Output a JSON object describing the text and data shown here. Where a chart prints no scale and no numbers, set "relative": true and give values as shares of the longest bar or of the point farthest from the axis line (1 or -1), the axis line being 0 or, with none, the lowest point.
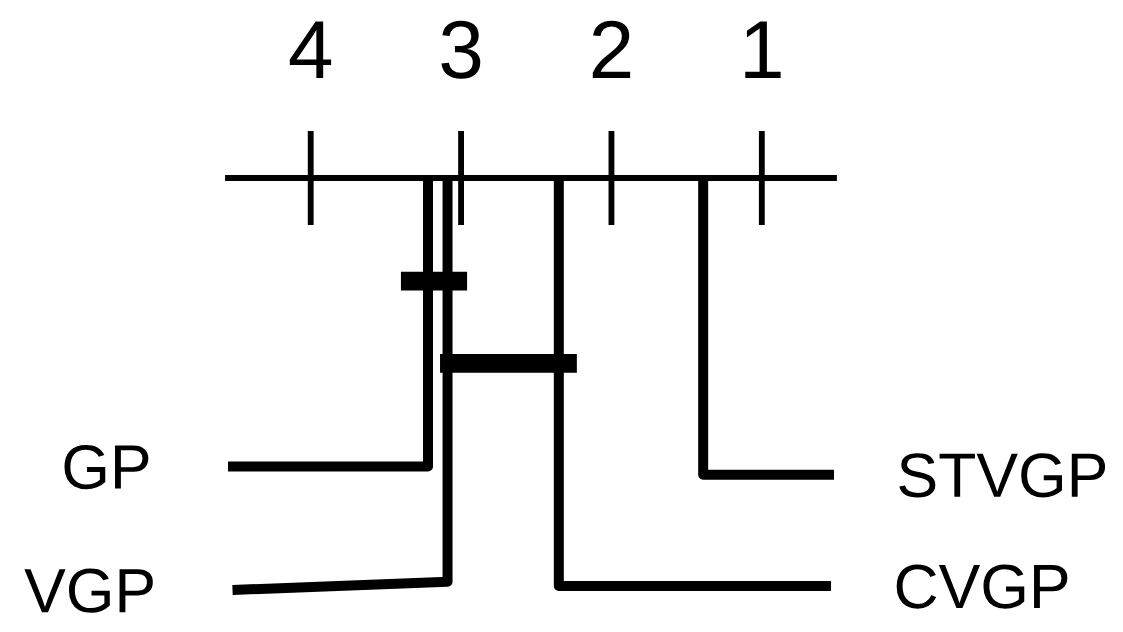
{
  "chart_data": {
    "type": "line",
    "relative": true,
    "xlim": [
      4.55,
      0.52
    ],
    "xticks": [
      4,
      3,
      2,
      1
    ],
    "series": [
      {
        "name": "GP",
        "color": "#000000",
        "x": [
          3.22,
          3.22,
          4.55
        ],
        "values": [
          0,
          -0.7,
          -0.7
        ]
      },
      {
        "name": "STVGP",
        "color": "#000000",
        "x": [
          1.39,
          1.39,
          0.52
        ],
        "values": [
          0,
          -0.72,
          -0.72
        ]
      },
      {
        "name": "VGP",
        "color": "#000000",
        "x": [
          3.09,
          3.09,
          4.52
        ],
        "values": [
          0,
          -0.98,
          -1
        ]
      },
      {
        "name": "CVGP",
        "color": "#000000",
        "x": [
          2.35,
          2.35,
          0.54
        ],
        "values": [
          0,
          -0.99,
          -0.99
        ]
      },
      {
        "color": "#000000",
        "x": [
          3.4,
          2.96
        ],
        "values": [
          -0.25,
          -0.25
        ]
      },
      {
        "color": "#000000",
        "x": [
          3.14,
          2.23
        ],
        "values": [
          -0.45,
          -0.45
        ]
      }
    ]
  }
}
